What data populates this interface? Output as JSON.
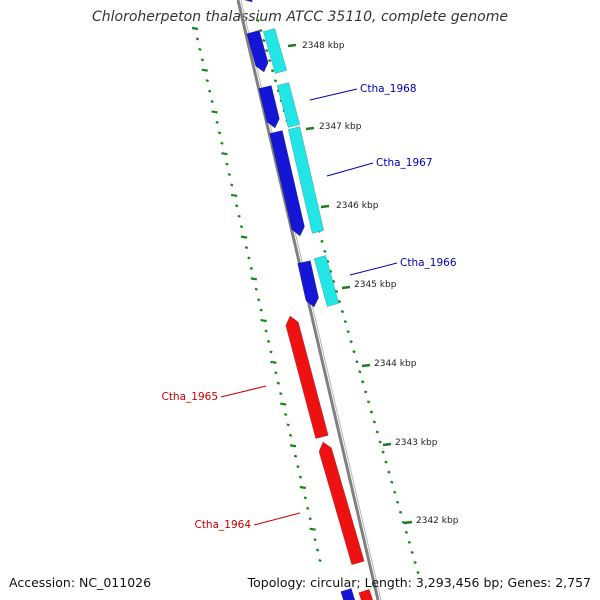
{
  "title": "Chloroherpeton thalassium ATCC 35110, complete genome",
  "footer": {
    "accession": "Accession: NC_011026",
    "summary": "Topology: circular; Length: 3,293,456 bp; Genes: 2,757"
  },
  "colors": {
    "forward_cds": "#1515d6",
    "reverse_cds": "#ee1111",
    "forward_feature": "#22e6e6",
    "backbone": "#808080",
    "gc_ticks": "#138a13",
    "forward_label": "#0000bb",
    "reverse_label": "#cc0000",
    "ruler_tick": "#1e7a1e"
  },
  "ruler_labels": [
    {
      "text": "2348 kbp"
    },
    {
      "text": "2347 kbp"
    },
    {
      "text": "2346 kbp"
    },
    {
      "text": "2345 kbp"
    },
    {
      "text": "2344 kbp"
    },
    {
      "text": "2343 kbp"
    },
    {
      "text": "2342 kbp"
    }
  ],
  "gene_labels": [
    {
      "text": "Ctha_1968",
      "strand": "forward"
    },
    {
      "text": "Ctha_1967",
      "strand": "forward"
    },
    {
      "text": "Ctha_1966",
      "strand": "forward"
    },
    {
      "text": "Ctha_1965",
      "strand": "reverse"
    },
    {
      "text": "Ctha_1964",
      "strand": "reverse"
    }
  ]
}
